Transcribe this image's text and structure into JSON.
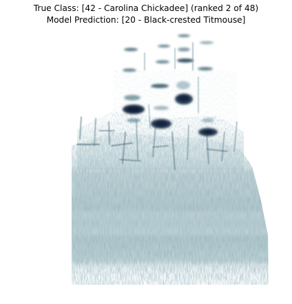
{
  "title": {
    "true_class": "True Class: [42 - Carolina Chickadee] (ranked 2 of 48)",
    "prediction": "Model Prediction: [20 - Black-crested Titmouse]"
  },
  "image": {
    "subject": "spectrogram of a bird vocalization",
    "palette": [
      "#ffffff",
      "#c9dade",
      "#8fb0b8",
      "#5b7f89",
      "#2a3f55",
      "#14233c"
    ]
  }
}
